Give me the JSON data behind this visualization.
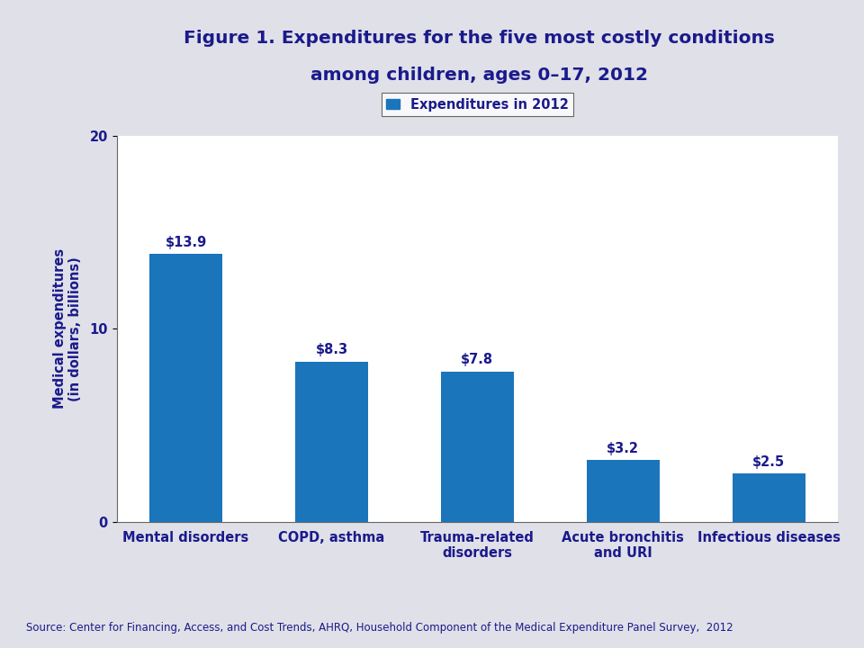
{
  "title_line1": "Figure 1. Expenditures for the five most costly conditions",
  "title_line2": "among children, ages 0–17, 2012",
  "categories": [
    "Mental disorders",
    "COPD, asthma",
    "Trauma-related\ndisorders",
    "Acute bronchitis\nand URI",
    "Infectious diseases"
  ],
  "values": [
    13.9,
    8.3,
    7.8,
    3.2,
    2.5
  ],
  "labels": [
    "$13.9",
    "$8.3",
    "$7.8",
    "$3.2",
    "$2.5"
  ],
  "bar_color": "#1B75BB",
  "ylabel": "Medical expenditures\n(in dollars, billions)",
  "ylim": [
    0,
    20
  ],
  "yticks": [
    0,
    10,
    20
  ],
  "legend_label": "Expenditures in 2012",
  "source_text": "Source: Center for Financing, Access, and Cost Trends, AHRQ, Household Component of the Medical Expenditure Panel Survey,  2012",
  "title_color": "#1A1A8C",
  "bar_text_color": "#1A1A8C",
  "axis_text_color": "#1A1A8C",
  "ylabel_color": "#1A1A8C",
  "source_color": "#1A1A8C",
  "header_bg": "#C8C8D0",
  "fig_bg": "#E0E0E8",
  "plot_bg": "#FFFFFF",
  "title_fontsize": 14.5,
  "label_fontsize": 10.5,
  "tick_fontsize": 10.5,
  "source_fontsize": 8.5
}
